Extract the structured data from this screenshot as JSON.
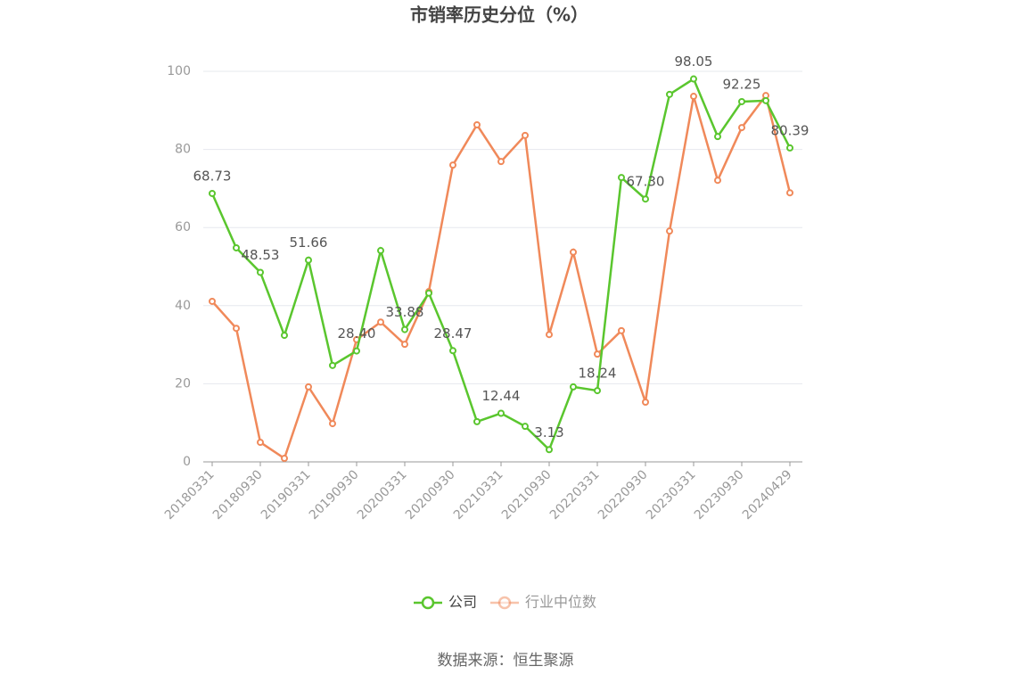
{
  "chart_data": {
    "type": "line",
    "title": "市销率历史分位（%）",
    "source": "数据来源：恒生聚源",
    "categories": [
      "20180331",
      null,
      "20180930",
      null,
      "20190331",
      null,
      "20190930",
      null,
      "20200331",
      null,
      "20200930",
      null,
      "20210331",
      null,
      "20210930",
      null,
      "20220331",
      null,
      "20220930",
      null,
      "20230331",
      null,
      "20230930",
      null,
      "20240429"
    ],
    "series": [
      {
        "name": "公司",
        "color": "#5ac62e",
        "values": [
          68.73,
          54.8,
          48.53,
          32.4,
          51.66,
          24.7,
          28.4,
          54.1,
          33.88,
          43.2,
          28.47,
          10.3,
          12.44,
          9.1,
          3.13,
          19.2,
          18.24,
          72.8,
          67.3,
          94.1,
          98.05,
          83.3,
          92.25,
          92.5,
          80.39
        ],
        "value_labels": [
          "68.73",
          null,
          "48.53",
          null,
          "51.66",
          null,
          "28.40",
          null,
          "33.88",
          null,
          "28.47",
          null,
          "12.44",
          null,
          "3.13",
          null,
          "18.24",
          null,
          "67.30",
          null,
          "98.05",
          null,
          "92.25",
          null,
          "80.39"
        ]
      },
      {
        "name": "行业中位数",
        "color": "#f0895a",
        "values": [
          41.1,
          34.2,
          5.0,
          0.9,
          19.2,
          9.8,
          31.3,
          35.8,
          30.1,
          43.6,
          76.0,
          86.3,
          76.9,
          83.6,
          32.6,
          53.7,
          27.6,
          33.6,
          15.3,
          59.1,
          93.6,
          72.1,
          85.6,
          93.8,
          68.9
        ]
      }
    ],
    "ylim": [
      0,
      100
    ],
    "yticks": [
      0,
      20,
      40,
      60,
      80,
      100
    ],
    "grid": true
  }
}
